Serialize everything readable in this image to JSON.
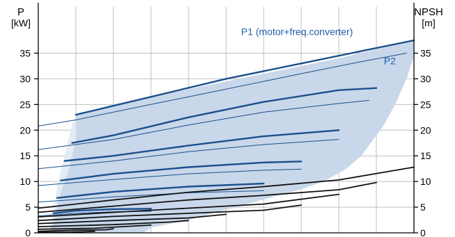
{
  "chart_data": {
    "type": "line",
    "left_axis": {
      "label_line1": "P",
      "label_line2": "[kW]",
      "ticks": [
        0,
        5,
        10,
        15,
        20,
        25,
        30,
        35
      ],
      "ylim": [
        0,
        44
      ]
    },
    "right_axis": {
      "label_line1": "NPSH",
      "label_line2": "[m]",
      "ticks": [
        0,
        5,
        10,
        15,
        20,
        25,
        30,
        35
      ],
      "ylim": [
        0,
        44
      ]
    },
    "xlim": [
      0,
      100
    ],
    "grid": true,
    "region": {
      "upper": [
        [
          3,
          0
        ],
        [
          4,
          2
        ],
        [
          5,
          5
        ],
        [
          6,
          8
        ],
        [
          8,
          12
        ],
        [
          9,
          15
        ],
        [
          10,
          18
        ],
        [
          10,
          21
        ],
        [
          10,
          23
        ],
        [
          20,
          25
        ],
        [
          40,
          28
        ],
        [
          60,
          31
        ],
        [
          80,
          34
        ],
        [
          100,
          37.5
        ]
      ],
      "lower": [
        [
          100,
          34.5
        ],
        [
          98,
          30
        ],
        [
          95,
          25
        ],
        [
          92,
          21
        ],
        [
          89,
          18
        ],
        [
          86,
          15
        ],
        [
          82,
          12.5
        ],
        [
          76,
          10
        ],
        [
          70,
          8.5
        ],
        [
          60,
          6.5
        ],
        [
          50,
          4.5
        ],
        [
          40,
          2.5
        ],
        [
          30,
          1
        ],
        [
          28,
          0
        ]
      ],
      "inner_line": [
        [
          10,
          23
        ],
        [
          9,
          21
        ],
        [
          8,
          18
        ],
        [
          7,
          15
        ],
        [
          6,
          12
        ],
        [
          5,
          9
        ],
        [
          4.5,
          6
        ],
        [
          4,
          4
        ]
      ]
    },
    "annotations": [
      {
        "key": "p1",
        "text": "P1 (motor+freq.converter)",
        "x": 54,
        "y": 38.5
      },
      {
        "key": "p2",
        "text": "P2",
        "x": 92,
        "y": 32.8
      }
    ],
    "series": [
      {
        "kind": "P1",
        "values": [
          [
            10,
            23
          ],
          [
            30,
            26.5
          ],
          [
            50,
            30
          ],
          [
            70,
            33
          ],
          [
            100,
            37.5
          ]
        ]
      },
      {
        "kind": "P2",
        "values": [
          [
            0,
            20.8
          ],
          [
            10,
            22
          ],
          [
            30,
            25
          ],
          [
            50,
            28
          ],
          [
            70,
            31
          ],
          [
            85,
            33.2
          ],
          [
            98,
            35
          ]
        ]
      },
      {
        "kind": "P1",
        "values": [
          [
            9,
            17.5
          ],
          [
            20,
            19
          ],
          [
            40,
            22.5
          ],
          [
            60,
            25.5
          ],
          [
            80,
            27.8
          ],
          [
            90,
            28.2
          ]
        ]
      },
      {
        "kind": "P2",
        "values": [
          [
            0,
            16.2
          ],
          [
            20,
            18.2
          ],
          [
            40,
            21
          ],
          [
            60,
            23.5
          ],
          [
            80,
            25.2
          ],
          [
            88,
            25.8
          ]
        ]
      },
      {
        "kind": "P1",
        "values": [
          [
            7,
            14
          ],
          [
            20,
            15
          ],
          [
            40,
            17
          ],
          [
            60,
            18.8
          ],
          [
            80,
            20
          ]
        ]
      },
      {
        "kind": "P2",
        "values": [
          [
            0,
            12.5
          ],
          [
            20,
            14
          ],
          [
            40,
            15.8
          ],
          [
            60,
            17.2
          ],
          [
            80,
            18.2
          ]
        ]
      },
      {
        "kind": "P1",
        "values": [
          [
            6,
            10.2
          ],
          [
            20,
            11.5
          ],
          [
            40,
            12.8
          ],
          [
            60,
            13.7
          ],
          [
            70,
            13.9
          ]
        ]
      },
      {
        "kind": "P2",
        "values": [
          [
            0,
            9.2
          ],
          [
            20,
            10.4
          ],
          [
            40,
            11.5
          ],
          [
            60,
            12.2
          ],
          [
            70,
            12.4
          ]
        ]
      },
      {
        "kind": "P1",
        "values": [
          [
            5,
            6.8
          ],
          [
            20,
            8
          ],
          [
            40,
            9
          ],
          [
            60,
            9.6
          ]
        ]
      },
      {
        "kind": "P2",
        "values": [
          [
            0,
            6
          ],
          [
            20,
            7
          ],
          [
            40,
            7.8
          ],
          [
            60,
            8.2
          ]
        ]
      },
      {
        "kind": "P1",
        "values": [
          [
            4,
            3.8
          ],
          [
            10,
            4.3
          ],
          [
            20,
            4.6
          ],
          [
            30,
            4.7
          ]
        ]
      },
      {
        "kind": "P2",
        "values": [
          [
            0,
            3.3
          ],
          [
            10,
            3.8
          ],
          [
            20,
            4.1
          ],
          [
            30,
            4.2
          ]
        ]
      },
      {
        "kind": "NPSH",
        "values": [
          [
            0,
            4.8
          ],
          [
            20,
            6.4
          ],
          [
            40,
            7.9
          ],
          [
            60,
            9
          ],
          [
            80,
            10.3
          ],
          [
            100,
            12.8
          ]
        ]
      },
      {
        "kind": "NPSH",
        "values": [
          [
            0,
            4
          ],
          [
            20,
            5.2
          ],
          [
            40,
            6.4
          ],
          [
            60,
            7.3
          ],
          [
            80,
            8.4
          ],
          [
            90,
            9.8
          ]
        ]
      },
      {
        "kind": "NPSH",
        "values": [
          [
            0,
            3.1
          ],
          [
            20,
            4
          ],
          [
            40,
            4.8
          ],
          [
            60,
            5.6
          ],
          [
            80,
            7.5
          ]
        ]
      },
      {
        "kind": "NPSH",
        "values": [
          [
            0,
            2.4
          ],
          [
            20,
            3.2
          ],
          [
            40,
            3.8
          ],
          [
            60,
            4.4
          ],
          [
            70,
            5.4
          ]
        ]
      },
      {
        "kind": "NPSH",
        "values": [
          [
            0,
            1.8
          ],
          [
            20,
            2.4
          ],
          [
            40,
            2.9
          ],
          [
            50,
            3.6
          ]
        ]
      },
      {
        "kind": "NPSH",
        "values": [
          [
            0,
            1.2
          ],
          [
            20,
            1.6
          ],
          [
            35,
            2.1
          ],
          [
            40,
            2.4
          ]
        ]
      },
      {
        "kind": "NPSH",
        "values": [
          [
            0,
            0.7
          ],
          [
            15,
            0.9
          ],
          [
            25,
            1.3
          ],
          [
            30,
            1.5
          ]
        ]
      },
      {
        "kind": "NPSH",
        "values": [
          [
            0,
            0.3
          ],
          [
            10,
            0.5
          ],
          [
            18,
            0.6
          ],
          [
            20,
            0.8
          ]
        ]
      },
      {
        "kind": "NPSH",
        "values": [
          [
            0,
            0.1
          ],
          [
            8,
            0.1
          ],
          [
            12,
            0.2
          ],
          [
            15,
            0.3
          ]
        ]
      }
    ],
    "colors": {
      "p1": "#1a4f8c",
      "p2": "#1a4f8c",
      "npsh": "#111111",
      "region": "#c9d7ea",
      "region_inner": "#e3ebf5",
      "grid": "#bfbfbf",
      "annotation": "#1f5fa8",
      "axis": "#000000"
    }
  }
}
